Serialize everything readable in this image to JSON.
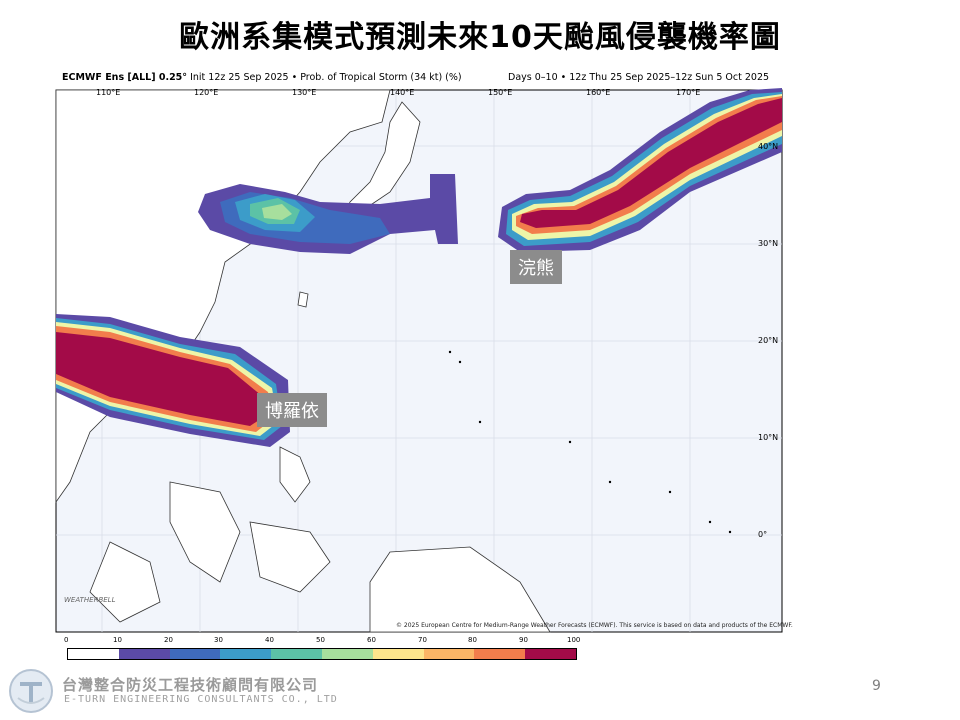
{
  "slide": {
    "title": "歐洲系集模式預測未來10天颱風侵襲機率圖",
    "page_number": "9"
  },
  "map": {
    "header_left_bold": "ECMWF Ens [ALL] 0.25°",
    "header_left_rest": " Init 12z 25 Sep 2025 • Prob. of Tropical Storm (34 kt) (%)",
    "header_right": "Days 0–10 • 12z Thu 25 Sep 2025–12z Sun 5 Oct 2025",
    "copyright": "© 2025 European Centre for Medium-Range Weather Forecasts (ECMWF). This service is based on data and products of the ECMWF.",
    "watermark": "WEATHERBELL",
    "lon_labels": [
      "110°E",
      "120°E",
      "130°E",
      "140°E",
      "150°E",
      "160°E",
      "170°E"
    ],
    "lat_labels": [
      "40°N",
      "30°N",
      "20°N",
      "10°N",
      "0°"
    ],
    "colorbar": {
      "ticks": [
        "0",
        "10",
        "20",
        "30",
        "40",
        "50",
        "60",
        "70",
        "80",
        "90",
        "100"
      ],
      "colors": [
        "#ffffff",
        "#5b4aa6",
        "#3f6bbd",
        "#3c9cc9",
        "#5cc2a6",
        "#a7df9d",
        "#eef5a8",
        "#fde58c",
        "#fbb566",
        "#f27d4c",
        "#a30b48"
      ]
    },
    "storm_labels": {
      "east": "浣熊",
      "west": "博羅依"
    }
  },
  "footer": {
    "company_zh": "台灣整合防災工程技術顧問有限公司",
    "company_en": "E-TURN ENGINEERING CONSULTANTS CO., LTD"
  }
}
